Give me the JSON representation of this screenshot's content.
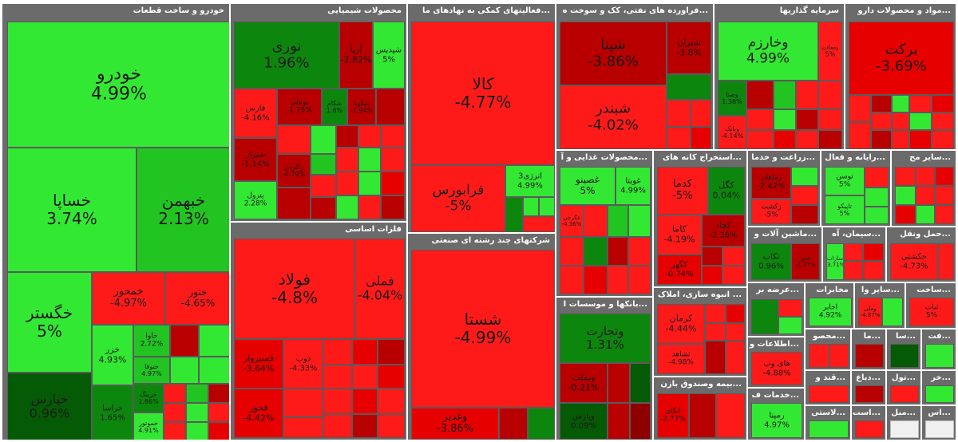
{
  "colors": {
    "header": "#6b6b6b",
    "green_light": "#33e833",
    "green": "#22c422",
    "green_dark": "#0c860c",
    "red": "#ff1a1a",
    "red_dark": "#b80000"
  },
  "sectors": {
    "auto": {
      "title": "خودرو و ساخت قطعات",
      "tiles": [
        {
          "name": "خودرو",
          "pct": "4.99%"
        },
        {
          "name": "خساپا",
          "pct": "3.74%"
        },
        {
          "name": "خبهمن",
          "pct": "2.13%"
        },
        {
          "name": "خگستر",
          "pct": "5%"
        },
        {
          "name": "خپارس",
          "pct": "0.96%"
        },
        {
          "name": "خمحور",
          "pct": "-4.97%"
        },
        {
          "name": "ختور",
          "pct": "-4.65%"
        },
        {
          "name": "خزر",
          "pct": "4.93%"
        },
        {
          "name": "خاوا",
          "pct": "2.72%"
        },
        {
          "name": "خراسا",
          "pct": "1.65%"
        },
        {
          "name": "ختوقا",
          "pct": "4.97%"
        },
        {
          "name": "خموتور",
          "pct": "4.91%"
        },
        {
          "name": "خرینگ",
          "pct": "1.86%"
        }
      ]
    },
    "chem": {
      "title": "محصولات شیمیایی",
      "tiles": [
        {
          "name": "نوری",
          "pct": "1.96%"
        },
        {
          "name": "آریا",
          "pct": "-2.82%"
        },
        {
          "name": "شپدیس",
          "pct": "5%"
        },
        {
          "name": "فارس",
          "pct": "-4.16%"
        },
        {
          "name": "شیراز",
          "pct": "-1.14%"
        },
        {
          "name": "پترول",
          "pct": "2.28%"
        },
        {
          "name": "بوعلی",
          "pct": "-1.75%"
        },
        {
          "name": "زاگرس",
          "pct": "-0.79%"
        },
        {
          "name": "شکام",
          "pct": "1.6%"
        },
        {
          "name": "شگویا",
          "pct": "-1.94%"
        }
      ]
    },
    "support": {
      "title": "...فعالیتهای کمکی به نهادهای ما",
      "tiles": [
        {
          "name": "کالا",
          "pct": "-4.77%"
        },
        {
          "name": "فرابورس",
          "pct": "-5%"
        },
        {
          "name": "انرژی3",
          "pct": "4.99%"
        }
      ]
    },
    "multi": {
      "title": "شرکتهای چند رشته ای صنعتی",
      "tiles": [
        {
          "name": "شستا",
          "pct": "-4.99%"
        },
        {
          "name": "وغدیر",
          "pct": "-3.86%"
        }
      ]
    },
    "metals": {
      "title": "فلزات اساسی",
      "tiles": [
        {
          "name": "فولاد",
          "pct": "-4.8%"
        },
        {
          "name": "فملی",
          "pct": "-4.04%"
        },
        {
          "name": "فسبزوار",
          "pct": "-3.64%"
        },
        {
          "name": "ذوب",
          "pct": "-4.33%"
        },
        {
          "name": "فخوز",
          "pct": "-4.42%"
        }
      ]
    },
    "oil": {
      "title": "...فراورده های نفتی، کک و سوخت ه",
      "tiles": [
        {
          "name": "شپنا",
          "pct": "-3.86%"
        },
        {
          "name": "شبندر",
          "pct": "-4.02%"
        },
        {
          "name": "شتران",
          "pct": "-3.8%"
        }
      ]
    },
    "invest": {
      "title": "سرمایه گذاریها",
      "tiles": [
        {
          "name": "وخارزم",
          "pct": "4.99%"
        },
        {
          "name": "ومعادن",
          "pct": "5%"
        },
        {
          "name": "وصنا",
          "pct": "1.38%"
        },
        {
          "name": "وبانک",
          "pct": "-4.14%"
        }
      ]
    },
    "pharma": {
      "title": "...مواد و محصولات دارو",
      "tiles": [
        {
          "name": "برکت",
          "pct": "-3.69%"
        }
      ]
    },
    "food": {
      "title": "...محصولات غذایی و آ",
      "tiles": [
        {
          "name": "غصینو",
          "pct": "5%"
        },
        {
          "name": "غویتا",
          "pct": "4.99%"
        },
        {
          "name": "غگرجی",
          "pct": "-4.36%"
        }
      ]
    },
    "mining": {
      "title": "...استخراج کانه های",
      "tiles": [
        {
          "name": "کدما",
          "pct": "-5%"
        },
        {
          "name": "کگل",
          "pct": "0.04%"
        },
        {
          "name": "کاما",
          "pct": "-4.19%"
        },
        {
          "name": "کچاد",
          "pct": "-2.36%"
        },
        {
          "name": "کگهر",
          "pct": "-0.74%"
        }
      ]
    },
    "banks": {
      "title": "...بانکها و موسسات ا",
      "tiles": [
        {
          "name": "وتجارت",
          "pct": "1.31%"
        },
        {
          "name": "وبملت",
          "pct": "-0.21%"
        },
        {
          "name": "وپارس",
          "pct": "0.09%"
        }
      ]
    },
    "construction": {
      "title": "... انبوه سازی، املاک",
      "tiles": [
        {
          "name": "کرمان",
          "pct": "-4.44%"
        },
        {
          "name": "ثشاهد",
          "pct": "-4.98%"
        }
      ]
    },
    "insurance": {
      "title": "...بیمه وصندوق بازن",
      "tiles": [
        {
          "name": "اتکای",
          "pct": "-2.77%"
        }
      ]
    },
    "agri": {
      "title": "...زراعت و خدما",
      "tiles": [
        {
          "name": "زماهان",
          "pct": "-2.42%"
        },
        {
          "name": "زکشت",
          "pct": "-5%"
        }
      ]
    },
    "computer": {
      "title": "...رایانه و فعال",
      "tiles": [
        {
          "name": "توسن",
          "pct": "5%"
        },
        {
          "name": "تاپیکو",
          "pct": "5%"
        }
      ]
    },
    "other": {
      "title": "...سایر مح",
      "tiles": []
    },
    "machinery": {
      "title": "...ماشین آلات و",
      "tiles": [
        {
          "name": "تکاب",
          "pct": "0.96%"
        },
        {
          "name": "خاور",
          "pct": "-1.77%"
        }
      ]
    },
    "cement": {
      "title": "...سیمان، آه",
      "tiles": [
        {
          "name": "ساراب",
          "pct": "3.71%"
        }
      ]
    },
    "transport": {
      "title": "...حمل ونقل",
      "tiles": [
        {
          "name": "حکشتی",
          "pct": "-4.73%"
        }
      ]
    },
    "supply": {
      "title": "...عرضه بر",
      "tiles": []
    },
    "telecom": {
      "title": "مخابرات",
      "tiles": [
        {
          "name": "اخابر",
          "pct": "4.92%"
        }
      ]
    },
    "othf": {
      "title": "...سایر وا",
      "tiles": [
        {
          "name": "وملی",
          "pct": "-4.87%"
        }
      ]
    },
    "construct2": {
      "title": "...ساخت",
      "tiles": [
        {
          "name": "ثبات",
          "pct": "5%"
        }
      ]
    },
    "info": {
      "title": "...اطلاعات و",
      "tiles": [
        {
          "name": "های وب",
          "pct": "-4.88%"
        }
      ]
    },
    "services": {
      "title": "...خدمات ف",
      "tiles": [
        {
          "name": "رمپنا",
          "pct": "4.97%"
        }
      ]
    },
    "misc": [
      {
        "title": "...محصو"
      },
      {
        "title": "...ما"
      },
      {
        "title": "...سا"
      },
      {
        "title": "...فت"
      },
      {
        "title": "...قند و"
      },
      {
        "title": "...دباغ"
      },
      {
        "title": "...تول"
      },
      {
        "title": "...خر"
      },
      {
        "title": "...لاستی"
      },
      {
        "title": "...است"
      },
      {
        "title": "...مبل"
      },
      {
        "title": "...اس"
      }
    ]
  }
}
